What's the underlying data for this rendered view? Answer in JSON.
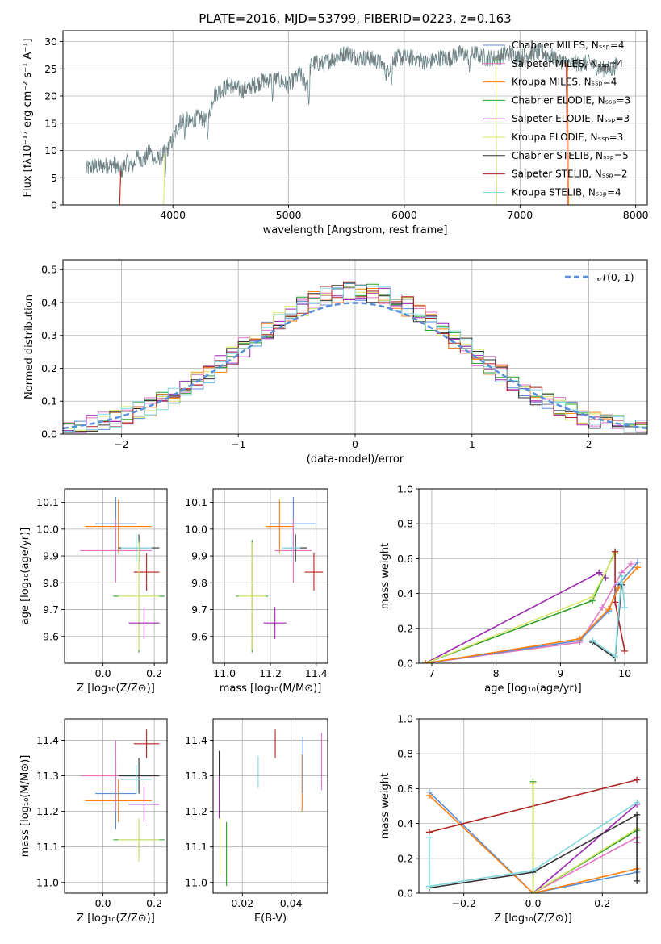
{
  "colors": {
    "chabrier_miles": "#5a8fd6",
    "salpeter_miles": "#e377c2",
    "kroupa_miles": "#ff7f0e",
    "chabrier_elodie": "#2ca02c",
    "salpeter_elodie": "#9c27b0",
    "kroupa_elodie": "#dbe86a",
    "chabrier_stelib": "#333333",
    "salpeter_stelib": "#b22222",
    "kroupa_stelib": "#80d8e0",
    "normal_curve": "#5b8fd9",
    "grid": "#b0b0b0"
  },
  "chart_data": [
    {
      "id": "spectrum",
      "type": "line",
      "title": "PLATE=2016, MJD=53799, FIBERID=0223, z=0.163",
      "xlabel": "wavelength [Angstrom, rest frame]",
      "ylabel": "Flux [fλ10⁻¹⁷ erg cm⁻² s⁻¹ A⁻¹]",
      "xlim": [
        3050,
        8100
      ],
      "ylim": [
        0,
        32
      ],
      "xticks": [
        4000,
        5000,
        6000,
        7000,
        8000
      ],
      "yticks": [
        0,
        5,
        10,
        15,
        20,
        25,
        30
      ],
      "legend": "top-right",
      "series": [
        {
          "name": "Chabrier MILES, Nₛₛₚ=4",
          "color_key": "chabrier_miles"
        },
        {
          "name": "Salpeter MILES, Nₛₛₚ=4",
          "color_key": "salpeter_miles"
        },
        {
          "name": "Kroupa MILES, Nₛₛₚ=4",
          "color_key": "kroupa_miles"
        },
        {
          "name": "Chabrier ELODIE, Nₛₛₚ=3",
          "color_key": "chabrier_elodie"
        },
        {
          "name": "Salpeter ELODIE, Nₛₛₚ=3",
          "color_key": "salpeter_elodie"
        },
        {
          "name": "Kroupa ELODIE, Nₛₛₚ=3",
          "color_key": "kroupa_elodie"
        },
        {
          "name": "Chabrier STELIB, Nₛₛₚ=5",
          "color_key": "chabrier_stelib"
        },
        {
          "name": "Salpeter STELIB, Nₛₛₚ=2",
          "color_key": "salpeter_stelib"
        },
        {
          "name": "Kroupa STELIB, Nₛₛₚ=4",
          "color_key": "kroupa_stelib"
        }
      ],
      "data_spectrum": {
        "x": [
          3250,
          3300,
          3400,
          3500,
          3550,
          3600,
          3650,
          3700,
          3750,
          3800,
          3850,
          3900,
          3950,
          4000,
          4050,
          4100,
          4150,
          4200,
          4250,
          4300,
          4350,
          4400,
          4500,
          4600,
          4700,
          4800,
          4900,
          5000,
          5100,
          5150,
          5200,
          5300,
          5400,
          5500,
          5600,
          5700,
          5800,
          5850,
          5900,
          6000,
          6100,
          6200,
          6300,
          6400,
          6500,
          6560,
          6600,
          6700,
          6800,
          6900,
          7000,
          7100,
          7200,
          7300,
          7400,
          7500,
          7600,
          7700,
          7800,
          7850
        ],
        "y": [
          6.5,
          7,
          7.2,
          7.5,
          6,
          8,
          7,
          9,
          8,
          10,
          8,
          9,
          10,
          12,
          15,
          16,
          15,
          16,
          16,
          15,
          20,
          21,
          22,
          21,
          22,
          23,
          23,
          22,
          24,
          22,
          26,
          26,
          27,
          28,
          27,
          27,
          26,
          24,
          27,
          27,
          27,
          26,
          27,
          27,
          28,
          27,
          28,
          27,
          27,
          28,
          27,
          28,
          28,
          27,
          26,
          26,
          26,
          25,
          25,
          26
        ],
        "dips": [
          [
            3934,
            5
          ],
          [
            4102,
            12
          ],
          [
            4300,
            12
          ],
          [
            4861,
            19
          ],
          [
            5175,
            18
          ],
          [
            5890,
            22
          ],
          [
            6563,
            24
          ]
        ]
      },
      "model_cutoffs": [
        {
          "color_key": "kroupa_miles",
          "start": 3540,
          "end": 7420
        },
        {
          "color_key": "salpeter_stelib",
          "start": 3540,
          "end": 7410
        },
        {
          "color_key": "kroupa_elodie",
          "start": 3920,
          "end": 6800
        }
      ]
    },
    {
      "id": "residuals",
      "type": "line",
      "xlabel": "(data-model)/error",
      "ylabel": "Normed distribution",
      "xlim": [
        -2.5,
        2.5
      ],
      "ylim": [
        0,
        0.53
      ],
      "xticks": [
        -2,
        -1,
        0,
        1,
        2
      ],
      "yticks": [
        0.0,
        0.1,
        0.2,
        0.3,
        0.4,
        0.5
      ],
      "legend": "top-right",
      "legend_label": "𝒩(0, 1)",
      "normal": {
        "mean": 0,
        "sigma": 1
      }
    },
    {
      "id": "age-vs-z",
      "type": "scatter",
      "xlabel": "Z [log₁₀(Z/Z⊙)]",
      "ylabel": "age  [log₁₀(age/yr)]",
      "xlim": [
        -0.15,
        0.25
      ],
      "ylim": [
        9.5,
        10.15
      ],
      "xticks": [
        0.0,
        0.2
      ],
      "yticks": [
        9.6,
        9.7,
        9.8,
        9.9,
        10.0,
        10.1
      ],
      "points": [
        {
          "color_key": "chabrier_miles",
          "x": 0.05,
          "y": 10.02,
          "xerr": 0.08,
          "yerr": 0.1
        },
        {
          "color_key": "kroupa_miles",
          "x": 0.06,
          "y": 10.01,
          "xerr": 0.13,
          "yerr": 0.1
        },
        {
          "color_key": "salpeter_miles",
          "x": 0.05,
          "y": 9.92,
          "xerr": 0.14,
          "yerr": 0.12
        },
        {
          "color_key": "chabrier_stelib",
          "x": 0.14,
          "y": 9.93,
          "xerr": 0.08,
          "yerr": 0.05
        },
        {
          "color_key": "kroupa_stelib",
          "x": 0.13,
          "y": 9.93,
          "xerr": 0.06,
          "yerr": 0.05
        },
        {
          "color_key": "salpeter_stelib",
          "x": 0.17,
          "y": 9.84,
          "xerr": 0.05,
          "yerr": 0.07
        },
        {
          "color_key": "chabrier_elodie",
          "x": 0.14,
          "y": 9.75,
          "xerr": 0.1,
          "yerr": 0.21
        },
        {
          "color_key": "kroupa_elodie",
          "x": 0.14,
          "y": 9.75,
          "xerr": 0.08,
          "yerr": 0.2
        },
        {
          "color_key": "salpeter_elodie",
          "x": 0.16,
          "y": 9.65,
          "xerr": 0.06,
          "yerr": 0.06
        }
      ]
    },
    {
      "id": "age-vs-mass",
      "type": "scatter",
      "xlabel": "mass [log₁₀(M/M⊙)]",
      "xlim": [
        10.95,
        11.45
      ],
      "ylim": [
        9.5,
        10.15
      ],
      "xticks": [
        11.0,
        11.2,
        11.4
      ],
      "yticks": [
        9.6,
        9.7,
        9.8,
        9.9,
        10.0,
        10.1
      ],
      "points": [
        {
          "color_key": "chabrier_miles",
          "x": 11.3,
          "y": 10.02,
          "xerr": 0.1,
          "yerr": 0.1
        },
        {
          "color_key": "kroupa_miles",
          "x": 11.24,
          "y": 10.01,
          "xerr": 0.06,
          "yerr": 0.1
        },
        {
          "color_key": "salpeter_miles",
          "x": 11.3,
          "y": 9.92,
          "xerr": 0.08,
          "yerr": 0.12
        },
        {
          "color_key": "chabrier_stelib",
          "x": 11.31,
          "y": 9.93,
          "xerr": 0.05,
          "yerr": 0.05
        },
        {
          "color_key": "kroupa_stelib",
          "x": 11.29,
          "y": 9.93,
          "xerr": 0.04,
          "yerr": 0.05
        },
        {
          "color_key": "salpeter_stelib",
          "x": 11.39,
          "y": 9.84,
          "xerr": 0.04,
          "yerr": 0.07
        },
        {
          "color_key": "chabrier_elodie",
          "x": 11.12,
          "y": 9.75,
          "xerr": 0.07,
          "yerr": 0.21
        },
        {
          "color_key": "kroupa_elodie",
          "x": 11.12,
          "y": 9.75,
          "xerr": 0.06,
          "yerr": 0.2
        },
        {
          "color_key": "salpeter_elodie",
          "x": 11.22,
          "y": 9.65,
          "xerr": 0.05,
          "yerr": 0.06
        }
      ]
    },
    {
      "id": "massweight-vs-age",
      "type": "line",
      "xlabel": "age  [log₁₀(age/yr)]",
      "ylabel": "mass weight",
      "xlim": [
        6.8,
        10.35
      ],
      "ylim": [
        0,
        1
      ],
      "xticks": [
        7,
        8,
        9,
        10
      ],
      "yticks": [
        0.0,
        0.2,
        0.4,
        0.6,
        0.8,
        1.0
      ],
      "series": [
        {
          "color_key": "salpeter_elodie",
          "x": [
            6.9,
            9.6,
            9.7
          ],
          "y": [
            0.0,
            0.52,
            0.49
          ]
        },
        {
          "color_key": "chabrier_elodie",
          "x": [
            6.9,
            9.5,
            9.85
          ],
          "y": [
            0.0,
            0.36,
            0.64
          ]
        },
        {
          "color_key": "kroupa_elodie",
          "x": [
            6.9,
            9.5,
            9.85
          ],
          "y": [
            0.0,
            0.38,
            0.63
          ]
        },
        {
          "color_key": "salpeter_stelib",
          "x": [
            9.85,
            9.85,
            10.0
          ],
          "y": [
            0.64,
            0.35,
            0.07
          ]
        },
        {
          "color_key": "salpeter_miles",
          "x": [
            6.9,
            9.3,
            9.65,
            9.95,
            10.1
          ],
          "y": [
            0.0,
            0.12,
            0.32,
            0.52,
            0.57
          ]
        },
        {
          "color_key": "chabrier_miles",
          "x": [
            6.9,
            9.3,
            9.75,
            9.9,
            10.2
          ],
          "y": [
            0.0,
            0.13,
            0.3,
            0.45,
            0.58
          ]
        },
        {
          "color_key": "kroupa_miles",
          "x": [
            6.9,
            9.3,
            9.75,
            9.9,
            10.2
          ],
          "y": [
            0.0,
            0.14,
            0.31,
            0.43,
            0.55
          ]
        },
        {
          "color_key": "chabrier_stelib",
          "x": [
            9.5,
            9.85,
            9.95
          ],
          "y": [
            0.12,
            0.03,
            0.45
          ]
        },
        {
          "color_key": "kroupa_stelib",
          "x": [
            9.5,
            9.85,
            9.95,
            10.0
          ],
          "y": [
            0.13,
            0.04,
            0.5,
            0.32
          ]
        }
      ]
    },
    {
      "id": "mass-vs-z",
      "type": "scatter",
      "xlabel": "Z [log₁₀(Z/Z⊙)]",
      "ylabel": "mass [log₁₀(M/M⊙)]",
      "xlim": [
        -0.15,
        0.25
      ],
      "ylim": [
        10.97,
        11.46
      ],
      "xticks": [
        0.0,
        0.2
      ],
      "yticks": [
        11.0,
        11.1,
        11.2,
        11.3,
        11.4
      ],
      "points": [
        {
          "color_key": "chabrier_miles",
          "x": 0.05,
          "y": 11.25,
          "xerr": 0.08,
          "yerr": 0.1
        },
        {
          "color_key": "kroupa_miles",
          "x": 0.06,
          "y": 11.23,
          "xerr": 0.13,
          "yerr": 0.06
        },
        {
          "color_key": "salpeter_miles",
          "x": 0.05,
          "y": 11.3,
          "xerr": 0.14,
          "yerr": 0.1
        },
        {
          "color_key": "chabrier_stelib",
          "x": 0.14,
          "y": 11.3,
          "xerr": 0.08,
          "yerr": 0.05
        },
        {
          "color_key": "kroupa_stelib",
          "x": 0.13,
          "y": 11.29,
          "xerr": 0.06,
          "yerr": 0.04
        },
        {
          "color_key": "salpeter_stelib",
          "x": 0.17,
          "y": 11.39,
          "xerr": 0.05,
          "yerr": 0.04
        },
        {
          "color_key": "chabrier_elodie",
          "x": 0.14,
          "y": 11.12,
          "xerr": 0.1,
          "yerr": 0.06
        },
        {
          "color_key": "kroupa_elodie",
          "x": 0.14,
          "y": 11.12,
          "xerr": 0.08,
          "yerr": 0.06
        },
        {
          "color_key": "salpeter_elodie",
          "x": 0.16,
          "y": 11.22,
          "xerr": 0.06,
          "yerr": 0.05
        }
      ]
    },
    {
      "id": "mass-vs-ebv",
      "type": "scatter",
      "xlabel": "E(B-V)",
      "xlim": [
        0.008,
        0.055
      ],
      "ylim": [
        10.97,
        11.46
      ],
      "xticks": [
        0.02,
        0.04
      ],
      "yticks": [
        11.0,
        11.1,
        11.2,
        11.3,
        11.4
      ],
      "points": [
        {
          "color_key": "chabrier_stelib",
          "x": 0.0105,
          "y": 11.3,
          "yerr": 0.07
        },
        {
          "color_key": "salpeter_elodie",
          "x": 0.0105,
          "y": 11.24,
          "yerr": 0.06
        },
        {
          "color_key": "kroupa_elodie",
          "x": 0.0108,
          "y": 11.1,
          "yerr": 0.08
        },
        {
          "color_key": "chabrier_elodie",
          "x": 0.0135,
          "y": 11.08,
          "yerr": 0.09
        },
        {
          "color_key": "kroupa_stelib",
          "x": 0.0265,
          "y": 11.31,
          "yerr": 0.045
        },
        {
          "color_key": "salpeter_stelib",
          "x": 0.0335,
          "y": 11.39,
          "yerr": 0.04
        },
        {
          "color_key": "kroupa_miles",
          "x": 0.0445,
          "y": 11.28,
          "yerr": 0.08
        },
        {
          "color_key": "chabrier_miles",
          "x": 0.0448,
          "y": 11.33,
          "yerr": 0.08
        },
        {
          "color_key": "salpeter_miles",
          "x": 0.0525,
          "y": 11.34,
          "yerr": 0.08
        }
      ]
    },
    {
      "id": "massweight-vs-z",
      "type": "line",
      "xlabel": "Z [log₁₀(Z/Z⊙)]",
      "ylabel": "mass weight",
      "xlim": [
        -0.33,
        0.33
      ],
      "ylim": [
        0,
        1
      ],
      "xticks": [
        -0.2,
        0.0,
        0.2
      ],
      "yticks": [
        0.0,
        0.2,
        0.4,
        0.6,
        0.8,
        1.0
      ],
      "series": [
        {
          "color_key": "chabrier_miles",
          "x": [
            -0.3,
            0.0,
            0.3
          ],
          "y": [
            0.58,
            0.0,
            0.12
          ]
        },
        {
          "color_key": "kroupa_miles",
          "x": [
            -0.3,
            0.0,
            0.3
          ],
          "y": [
            0.56,
            0.0,
            0.14
          ]
        },
        {
          "color_key": "salpeter_miles",
          "x": [
            0.0,
            0.3,
            0.3
          ],
          "y": [
            0.0,
            0.32,
            0.29
          ]
        },
        {
          "color_key": "salpeter_stelib",
          "x": [
            -0.3,
            0.3
          ],
          "y": [
            0.35,
            0.65
          ]
        },
        {
          "color_key": "salpeter_elodie",
          "x": [
            0.0,
            0.3
          ],
          "y": [
            0.0,
            0.51
          ]
        },
        {
          "color_key": "chabrier_elodie",
          "x": [
            0.0,
            0.0,
            0.3
          ],
          "y": [
            0.64,
            0.0,
            0.36
          ]
        },
        {
          "color_key": "kroupa_elodie",
          "x": [
            0.0,
            0.0,
            0.3
          ],
          "y": [
            0.63,
            0.0,
            0.37
          ]
        },
        {
          "color_key": "chabrier_stelib",
          "x": [
            -0.3,
            0.0,
            0.3,
            0.3
          ],
          "y": [
            0.03,
            0.12,
            0.45,
            0.07
          ]
        },
        {
          "color_key": "kroupa_stelib",
          "x": [
            -0.3,
            -0.3,
            0.0,
            0.3
          ],
          "y": [
            0.32,
            0.04,
            0.13,
            0.52
          ]
        }
      ]
    }
  ]
}
